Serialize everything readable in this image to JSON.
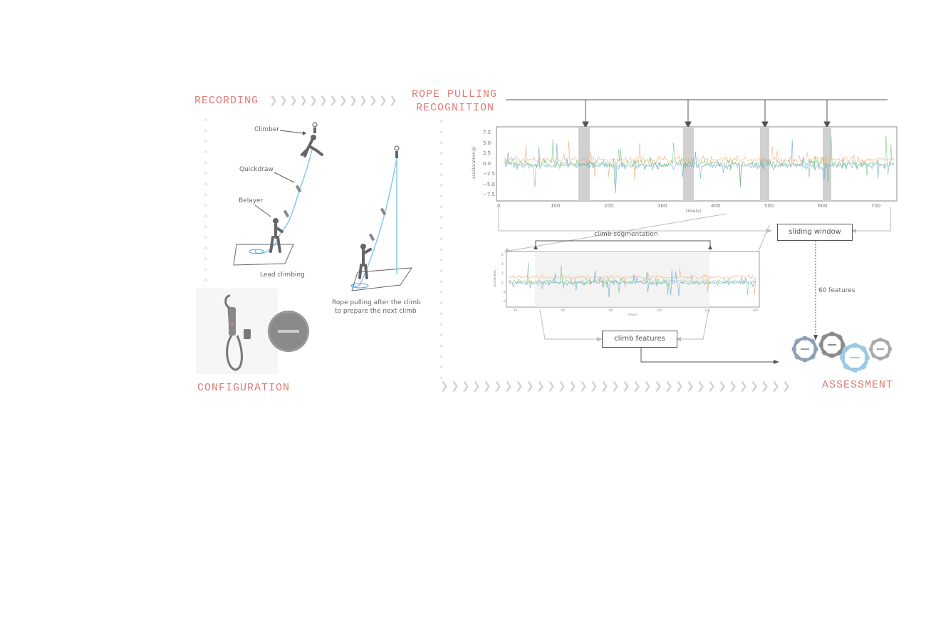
{
  "headings": {
    "recording": "RECORDING",
    "rope_pulling_line1": "ROPE PULLING",
    "rope_pulling_line2": "RECOGNITION",
    "configuration": "CONFIGURATION",
    "assessment": "ASSESSMENT"
  },
  "illustration": {
    "climber": "Climber",
    "quickdraw": "Quickdraw",
    "belayer": "Belayer",
    "lead_climbing": "Lead climbing",
    "rope_pulling_line1": "Rope pulling after the climb",
    "rope_pulling_line2": "to prepare the next climb"
  },
  "flow": {
    "climb_segmentation": "climb segmentation",
    "sliding_window": "sliding window",
    "features_count": "60 features",
    "climb_features": "climb features"
  },
  "colors": {
    "heading": "#e07c78",
    "series_blue": "#5b9bd5",
    "series_orange": "#f0a868",
    "series_green": "#6fbf73",
    "rope": "#87c8ee",
    "chevron": "#d3d3d3"
  },
  "main_plot": {
    "ylabel": "acceleration(g)",
    "xlabel": "time(s)",
    "yticks": [
      "7.5",
      "5.0",
      "2.5",
      "0.0",
      "−2.5",
      "−5.0",
      "−7.5"
    ],
    "xticks": [
      "0",
      "100",
      "200",
      "300",
      "400",
      "500",
      "600",
      "700"
    ]
  },
  "zoom_plot": {
    "ylabel": "acceleration",
    "xlabel": "time(s)",
    "yticks": [
      "6",
      "4",
      "2",
      "0",
      "−2",
      "−4"
    ],
    "xticks": [
      "40",
      "60",
      "80",
      "100",
      "120",
      "140"
    ]
  }
}
